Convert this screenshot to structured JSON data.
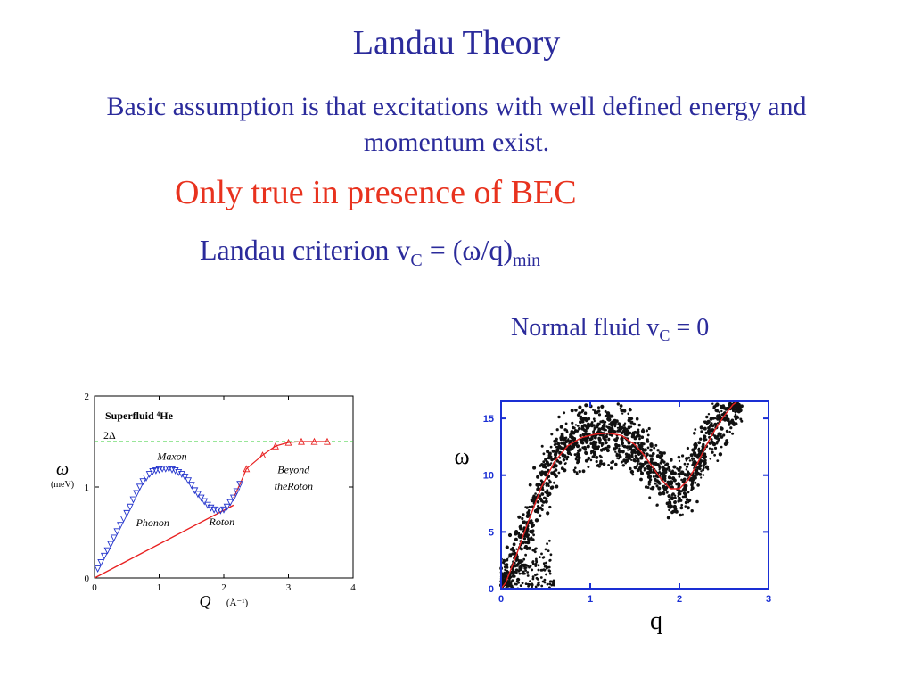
{
  "slide": {
    "title": "Landau Theory",
    "subtitle": "Basic assumption is that excitations with well defined energy and momentum exist.",
    "claim": "Only true in presence of BEC",
    "criterion_prefix": "Landau criterion v",
    "criterion_sub": "C",
    "criterion_mid": " = (ω/q)",
    "criterion_sub2": "min",
    "normal_prefix": "Normal fluid v",
    "normal_sub": "C",
    "normal_suffix": " = 0",
    "colors": {
      "title_blue": "#2b2b9b",
      "claim_red": "#e8321e"
    }
  },
  "chart_data": [
    {
      "type": "scatter",
      "panel_label": "Superfluid ⁴He",
      "reference_line_label": "2Δ",
      "reference_line_y": 1.5,
      "ylabel_symbol": "ω",
      "ylabel_unit": "(meV)",
      "xlabel_symbol": "Q",
      "xlabel_unit": "(Å⁻¹)",
      "xlim": [
        0,
        4
      ],
      "ylim": [
        0,
        2
      ],
      "x_ticks": [
        "0",
        "1",
        "2",
        "3",
        "4"
      ],
      "y_ticks": [
        "0",
        "1",
        "2"
      ],
      "annotations": [
        "Maxon",
        "Phonon",
        "Roton",
        "Beyond",
        "theRoton"
      ],
      "colors": {
        "data_blue": "#2233cc",
        "fit_red": "#e82020",
        "ref_green": "#33cc33"
      },
      "series": [
        {
          "marker": "triangle-down",
          "x": [
            0.05,
            0.1,
            0.15,
            0.2,
            0.25,
            0.3,
            0.35,
            0.4,
            0.45,
            0.5,
            0.55,
            0.6,
            0.65,
            0.7,
            0.75,
            0.8,
            0.85,
            0.9,
            0.95,
            1.0,
            1.05,
            1.1,
            1.15,
            1.2,
            1.25,
            1.3,
            1.35,
            1.4,
            1.45,
            1.5,
            1.55,
            1.6,
            1.65,
            1.7,
            1.75,
            1.8,
            1.85,
            1.9,
            1.95,
            2.0,
            2.05,
            2.1,
            2.15,
            2.2,
            2.25
          ],
          "y": [
            0.1,
            0.17,
            0.24,
            0.3,
            0.37,
            0.44,
            0.51,
            0.58,
            0.65,
            0.71,
            0.78,
            0.86,
            0.93,
            1.0,
            1.06,
            1.1,
            1.14,
            1.17,
            1.18,
            1.19,
            1.2,
            1.2,
            1.2,
            1.19,
            1.18,
            1.16,
            1.14,
            1.11,
            1.07,
            1.02,
            0.96,
            0.92,
            0.88,
            0.84,
            0.8,
            0.77,
            0.75,
            0.74,
            0.74,
            0.75,
            0.78,
            0.83,
            0.88,
            0.95,
            1.03
          ]
        },
        {
          "marker": "triangle-up",
          "x": [
            2.35,
            2.6,
            2.8,
            3.0,
            3.2,
            3.4,
            3.6
          ],
          "y": [
            1.2,
            1.35,
            1.45,
            1.49,
            1.5,
            1.5,
            1.5
          ]
        }
      ],
      "phonon_line": {
        "x": [
          0,
          2.15
        ],
        "y": [
          0,
          0.8
        ]
      }
    },
    {
      "type": "scatter",
      "ylabel": "ω",
      "xlabel": "q",
      "xlim": [
        0,
        3
      ],
      "ylim": [
        0,
        16.5
      ],
      "x_ticks": [
        "0",
        "1",
        "2",
        "3"
      ],
      "y_ticks": [
        "0",
        "5",
        "10",
        "15"
      ],
      "colors": {
        "frame_blue": "#1a2fd4",
        "curve_red": "#e82020"
      },
      "curve": {
        "x": [
          0,
          0.05,
          0.15,
          0.3,
          0.45,
          0.6,
          0.75,
          0.9,
          1.05,
          1.2,
          1.35,
          1.5,
          1.6,
          1.7,
          1.8,
          1.9,
          2.0,
          2.1,
          2.2,
          2.3,
          2.4,
          2.5,
          2.6,
          2.65
        ],
        "y": [
          0,
          0.5,
          2.5,
          5.8,
          8.9,
          11.2,
          12.6,
          13.3,
          13.6,
          13.7,
          13.5,
          12.7,
          11.8,
          10.7,
          9.6,
          8.8,
          8.8,
          9.6,
          11.0,
          12.6,
          14.0,
          15.2,
          16.2,
          16.5
        ]
      }
    }
  ]
}
